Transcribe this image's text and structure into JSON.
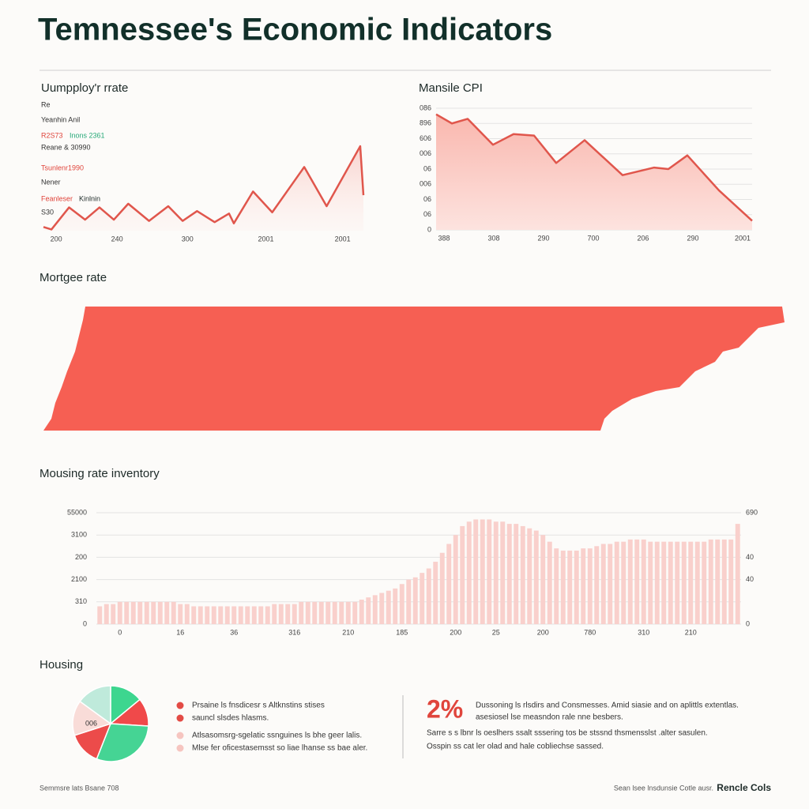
{
  "title": "Temnessee's Economic Indicators",
  "chart_data": [
    {
      "type": "line",
      "title": "Uumpploy'r rrate",
      "color": "#e0564c",
      "x": [
        0,
        0.5,
        1.6,
        2.6,
        3.5,
        4.4,
        5.3,
        6.6,
        7.8,
        8.7,
        9.6,
        10.7,
        11.6,
        11.9,
        13.1,
        14.3,
        16.3,
        17.7,
        19.8,
        20
      ],
      "values": [
        0.3,
        0.1,
        1.9,
        0.9,
        1.9,
        0.9,
        2.2,
        0.8,
        2.0,
        0.8,
        1.6,
        0.7,
        1.4,
        0.6,
        3.2,
        1.5,
        5.2,
        2.0,
        6.9,
        2.9
      ],
      "xlim": [
        0,
        20
      ],
      "ylim": [
        0,
        10
      ],
      "xticks": [
        {
          "value": 0.8,
          "label": "200"
        },
        {
          "value": 4.6,
          "label": "240"
        },
        {
          "value": 9,
          "label": "300"
        },
        {
          "value": 13.9,
          "label": "2001"
        },
        {
          "value": 18.7,
          "label": "2001"
        }
      ],
      "annotations": [
        {
          "text": "Re",
          "color": "#333333"
        },
        {
          "text": "Yeanhin Anil",
          "color": "#333333"
        },
        {
          "text": "R2S73",
          "color": "#e0453c"
        },
        {
          "text": "Inons 2361",
          "color": "#27a978"
        },
        {
          "text": "Reane & 30990",
          "color": "#333333"
        },
        {
          "text": "Tsunlenr1990",
          "color": "#e0453c"
        },
        {
          "text": "Nener",
          "color": "#333333"
        },
        {
          "text": "Feanleser",
          "color": "#e0453c"
        },
        {
          "text": "Kinlnin",
          "color": "#1d2a28"
        },
        {
          "text": "S30",
          "color": "#333333"
        }
      ]
    },
    {
      "type": "area",
      "title": "Mansile CPI",
      "color": "#e0564c",
      "fill": "#fbc9c3",
      "x": [
        0,
        1,
        2,
        3.6,
        4.9,
        6.2,
        7.6,
        9.4,
        11.8,
        13.8,
        14.7,
        15.9,
        17.9,
        20
      ],
      "values": [
        7.6,
        7.0,
        7.3,
        5.6,
        6.3,
        6.2,
        4.4,
        5.9,
        3.6,
        4.1,
        4.0,
        4.9,
        2.6,
        0.6
      ],
      "xlim": [
        0,
        20
      ],
      "ylim": [
        0,
        8
      ],
      "grid": true,
      "yticks": [
        0,
        {
          "value": 1,
          "label": "06"
        },
        {
          "value": 2,
          "label": "06"
        },
        {
          "value": 3,
          "label": "006"
        },
        {
          "value": 4,
          "label": "06"
        },
        {
          "value": 5,
          "label": "006"
        },
        {
          "value": 6,
          "label": "606"
        },
        {
          "value": 7,
          "label": "896"
        },
        {
          "value": 8,
          "label": "086"
        }
      ],
      "xticks": [
        {
          "value": 0.5,
          "label": "388"
        },
        {
          "value": 3.65,
          "label": "308"
        },
        {
          "value": 6.8,
          "label": "290"
        },
        {
          "value": 9.95,
          "label": "700"
        },
        {
          "value": 13.1,
          "label": "206"
        },
        {
          "value": 16.25,
          "label": "290"
        },
        {
          "value": 19.4,
          "label": "2001"
        }
      ]
    },
    {
      "type": "bar",
      "title": "Mousing rate inventory",
      "color": "#f9d0cc",
      "values": [
        0.8,
        0.9,
        0.9,
        1.0,
        1.0,
        1.0,
        1.0,
        1.0,
        1.0,
        1.0,
        1.0,
        1.0,
        0.9,
        0.9,
        0.8,
        0.8,
        0.8,
        0.8,
        0.8,
        0.8,
        0.8,
        0.8,
        0.8,
        0.8,
        0.8,
        0.8,
        0.9,
        0.9,
        0.9,
        0.9,
        1.0,
        1.0,
        1.0,
        1.0,
        1.0,
        1.0,
        1.0,
        1.0,
        1.0,
        1.1,
        1.2,
        1.3,
        1.4,
        1.5,
        1.6,
        1.8,
        2.0,
        2.1,
        2.3,
        2.5,
        2.8,
        3.2,
        3.6,
        4.0,
        4.4,
        4.6,
        4.7,
        4.7,
        4.7,
        4.6,
        4.6,
        4.5,
        4.5,
        4.4,
        4.3,
        4.2,
        4.0,
        3.7,
        3.4,
        3.3,
        3.3,
        3.3,
        3.4,
        3.4,
        3.5,
        3.6,
        3.6,
        3.7,
        3.7,
        3.8,
        3.8,
        3.8,
        3.7,
        3.7,
        3.7,
        3.7,
        3.7,
        3.7,
        3.7,
        3.7,
        3.7,
        3.8,
        3.8,
        3.8,
        3.8,
        4.5
      ],
      "ylim": [
        0,
        5
      ],
      "grid": true,
      "yticks": [
        0,
        {
          "value": 1,
          "label": "310"
        },
        {
          "value": 2,
          "label": "2100"
        },
        {
          "value": 3,
          "label": "200"
        },
        {
          "value": 4,
          "label": "3100"
        },
        {
          "value": 5,
          "label": "55000"
        }
      ],
      "y2lim": [
        0,
        5
      ],
      "y2ticks": [
        0,
        {
          "value": 2,
          "label": "40"
        },
        {
          "value": 3,
          "label": "40"
        },
        {
          "value": 5,
          "label": "690"
        }
      ],
      "xticks": [
        {
          "value": 3,
          "label": "0"
        },
        {
          "value": 12,
          "label": "16"
        },
        {
          "value": 20,
          "label": "36"
        },
        {
          "value": 29,
          "label": "316"
        },
        {
          "value": 37,
          "label": "210"
        },
        {
          "value": 45,
          "label": "185"
        },
        {
          "value": 53,
          "label": "200"
        },
        {
          "value": 59,
          "label": "25"
        },
        {
          "value": 66,
          "label": "200"
        },
        {
          "value": 73,
          "label": "780"
        },
        {
          "value": 81,
          "label": "310"
        },
        {
          "value": 88,
          "label": "210"
        }
      ]
    },
    {
      "type": "pie",
      "title": "Housing",
      "values": [
        14,
        12,
        30,
        14,
        15,
        15
      ],
      "colors": [
        "#3dd68f",
        "#f0494a",
        "#45d494",
        "#ec4b4a",
        "#f9dcd8",
        "#bfeadb"
      ],
      "annotation": "006"
    }
  ],
  "mortgage": {
    "title": "Mortgee rate"
  },
  "housing": {
    "notes": [
      {
        "text": "Prsaine ls fnsdicesr s Altknstins stises",
        "color": "#e34b45"
      },
      {
        "text": "sauncl slsdes hlasms.",
        "color": "#e34b45"
      },
      {
        "text": "Atlsasomsrg-sgelatic ssnguines ls bhe geer lalis.",
        "color": "#f6c5c0"
      },
      {
        "text": "Mlse fer oficestasemsst so liae lhanse ss bae aler.",
        "color": "#f6c5c0"
      }
    ],
    "stat": "2%",
    "stat_lines": [
      "Dussoning ls rlsdirs and Consmesses. Amid siasie and on aplittls extentlas.",
      "asesiosel lse measndon rale nne besbers.",
      "Sarre s s lbnr ls oeslhers ssalt sssering tos be stssnd thsmensslst .alter sasulen.",
      "Osspin ss cat ler olad and hale cobliechse sassed."
    ]
  },
  "footer": {
    "left": "Semmsre lats Bsane 708",
    "right": "Sean lsee lnsdunsie Cotle ausr.",
    "brand": "Rencle Cols"
  }
}
